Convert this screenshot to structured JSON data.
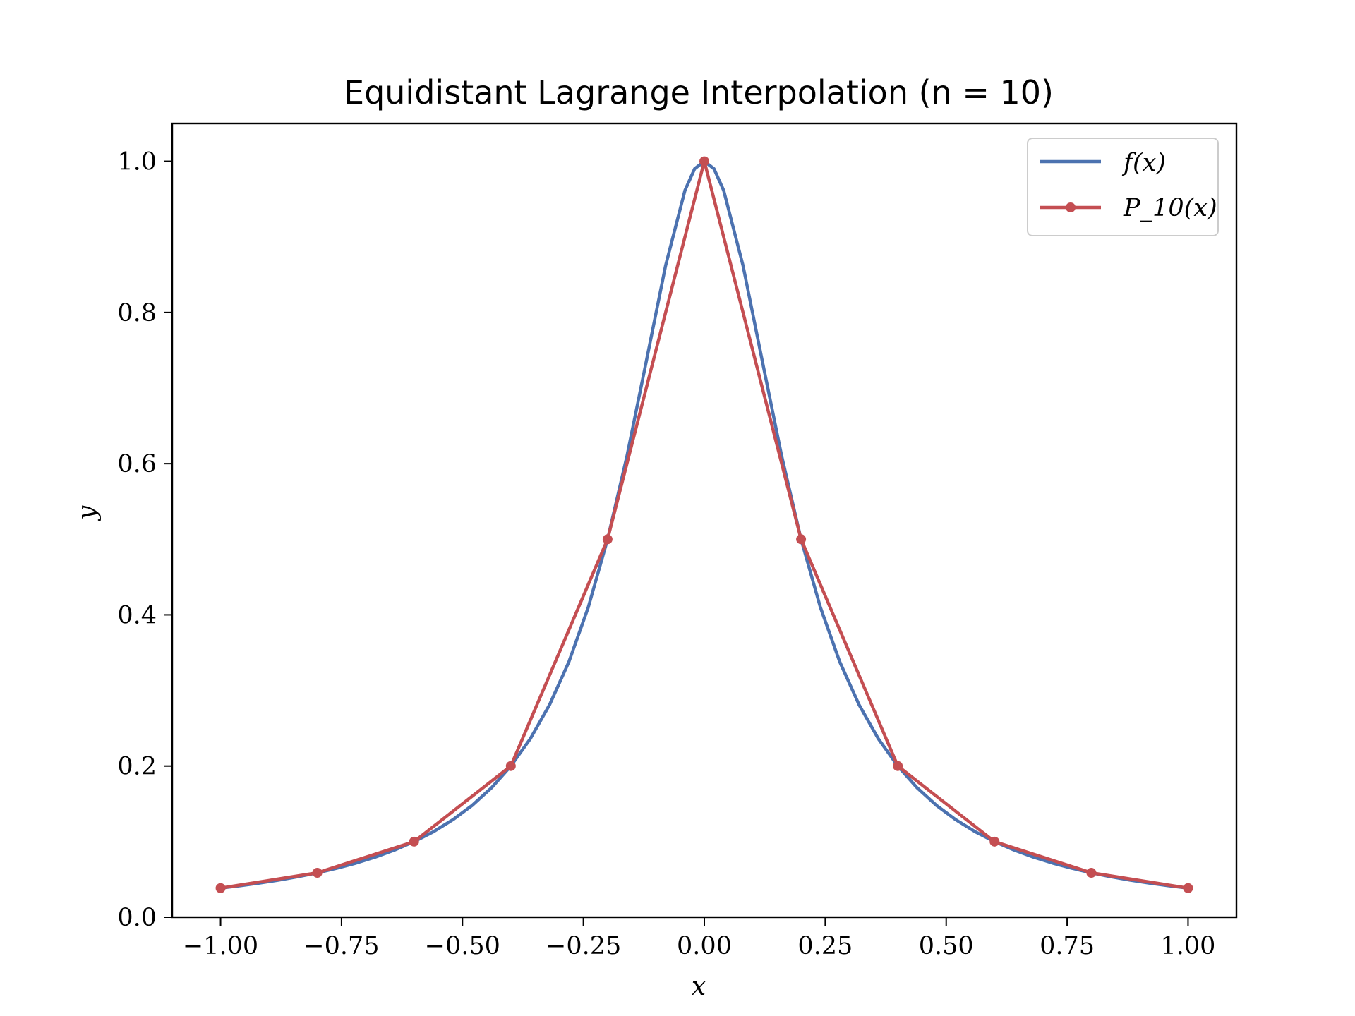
{
  "chart_data": {
    "type": "line",
    "title": "Equidistant Lagrange Interpolation (n = 10)",
    "xlabel": "x",
    "ylabel": "y",
    "xlim": [
      -1.1,
      1.1
    ],
    "ylim": [
      0.0,
      1.05
    ],
    "grid": false,
    "legend_position": "top-right",
    "x_ticks": [
      -1.0,
      -0.75,
      -0.5,
      -0.25,
      0.0,
      0.25,
      0.5,
      0.75,
      1.0
    ],
    "x_tick_labels": [
      "−1.00",
      "−0.75",
      "−0.50",
      "−0.25",
      "0.00",
      "0.25",
      "0.50",
      "0.75",
      "1.00"
    ],
    "y_ticks": [
      0.0,
      0.2,
      0.4,
      0.6,
      0.8,
      1.0
    ],
    "y_tick_labels": [
      "0.0",
      "0.2",
      "0.4",
      "0.6",
      "0.8",
      "1.0"
    ],
    "series": [
      {
        "name": "f(x)",
        "color": "#4c72b0",
        "marker": false,
        "x": [
          -1.0,
          -0.96,
          -0.92,
          -0.88,
          -0.84,
          -0.8,
          -0.76,
          -0.72,
          -0.68,
          -0.64,
          -0.6,
          -0.56,
          -0.52,
          -0.48,
          -0.44,
          -0.4,
          -0.36,
          -0.32,
          -0.28,
          -0.24,
          -0.2,
          -0.16,
          -0.12,
          -0.08,
          -0.04,
          -0.02,
          0.0,
          0.02,
          0.04,
          0.08,
          0.12,
          0.16,
          0.2,
          0.24,
          0.28,
          0.32,
          0.36,
          0.4,
          0.44,
          0.48,
          0.52,
          0.56,
          0.6,
          0.64,
          0.68,
          0.72,
          0.76,
          0.8,
          0.84,
          0.88,
          0.92,
          0.96,
          1.0
        ],
        "y": [
          0.0385,
          0.0416,
          0.0451,
          0.0491,
          0.0536,
          0.0588,
          0.0648,
          0.0716,
          0.0796,
          0.089,
          0.1,
          0.1131,
          0.1289,
          0.1479,
          0.1712,
          0.2,
          0.2358,
          0.2809,
          0.3378,
          0.4098,
          0.5,
          0.6098,
          0.7353,
          0.8621,
          0.9615,
          0.9901,
          1.0,
          0.9901,
          0.9615,
          0.8621,
          0.7353,
          0.6098,
          0.5,
          0.4098,
          0.3378,
          0.2809,
          0.2358,
          0.2,
          0.1712,
          0.1479,
          0.1289,
          0.1131,
          0.1,
          0.089,
          0.0796,
          0.0716,
          0.0648,
          0.0588,
          0.0536,
          0.0491,
          0.0451,
          0.0416,
          0.0385
        ]
      },
      {
        "name": "P_10(x)",
        "color": "#c44e52",
        "marker": true,
        "x": [
          -1.0,
          -0.8,
          -0.6,
          -0.4,
          -0.2,
          0.0,
          0.2,
          0.4,
          0.6,
          0.8,
          1.0
        ],
        "y": [
          0.0385,
          0.0588,
          0.1,
          0.2,
          0.5,
          1.0,
          0.5,
          0.2,
          0.1,
          0.0588,
          0.0385
        ]
      }
    ]
  }
}
